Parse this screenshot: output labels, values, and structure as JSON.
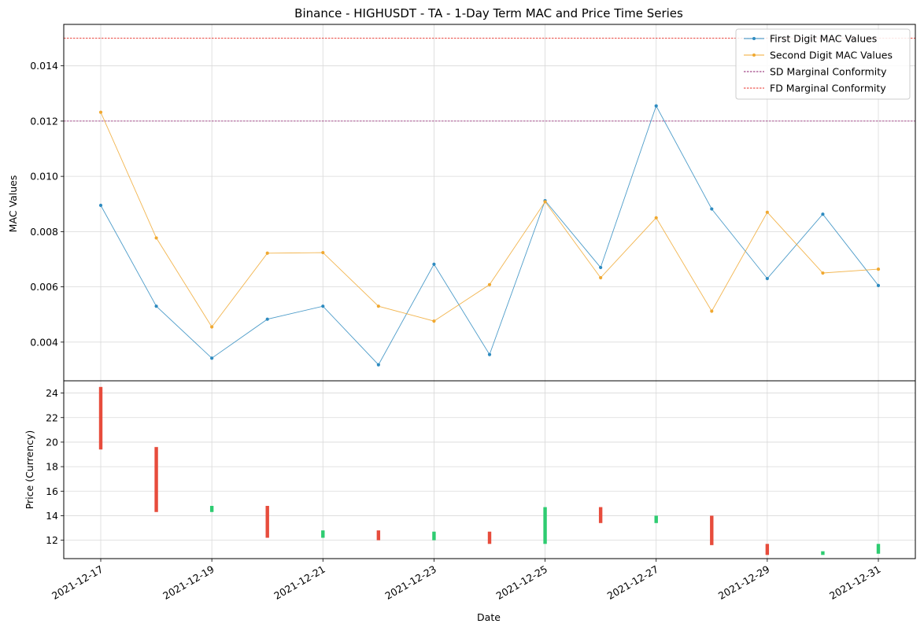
{
  "chart_data": {
    "title": "Binance - HIGHUSDT - TA - 1-Day Term MAC and Price Time Series",
    "xlabel": "Date",
    "dates": [
      "2021-12-17",
      "2021-12-18",
      "2021-12-19",
      "2021-12-20",
      "2021-12-21",
      "2021-12-22",
      "2021-12-23",
      "2021-12-24",
      "2021-12-25",
      "2021-12-26",
      "2021-12-27",
      "2021-12-28",
      "2021-12-29",
      "2021-12-30",
      "2021-12-31"
    ],
    "x_tick_labels": [
      "2021-12-17",
      "2021-12-19",
      "2021-12-21",
      "2021-12-23",
      "2021-12-25",
      "2021-12-27",
      "2021-12-29",
      "2021-12-31"
    ],
    "mac_panel": {
      "type": "line",
      "ylabel": "MAC Values",
      "ylim": [
        0.0026,
        0.0155
      ],
      "y_ticks": [
        0.004,
        0.006,
        0.008,
        0.01,
        0.012,
        0.014
      ],
      "y_tick_labels": [
        "0.004",
        "0.006",
        "0.008",
        "0.010",
        "0.012",
        "0.014"
      ],
      "grid": true,
      "legend_position": "top-right",
      "series": [
        {
          "name": "First Digit MAC Values",
          "color": "#2e8bc0",
          "values": [
            0.00895,
            0.0053,
            0.00342,
            0.00483,
            0.0053,
            0.00318,
            0.00682,
            0.00355,
            0.00912,
            0.0067,
            0.01255,
            0.00882,
            0.0063,
            0.00863,
            0.00605
          ]
        },
        {
          "name": "Second Digit MAC Values",
          "color": "#f0a830",
          "values": [
            0.01232,
            0.00777,
            0.00455,
            0.00722,
            0.00724,
            0.0053,
            0.00476,
            0.00608,
            0.00908,
            0.00633,
            0.0085,
            0.00512,
            0.0087,
            0.0065,
            0.00664
          ]
        }
      ],
      "reference_lines": [
        {
          "name": "SD Marginal Conformity",
          "value": 0.012,
          "color": "#8b1a6b"
        },
        {
          "name": "FD Marginal Conformity",
          "value": 0.015,
          "color": "#e8302a"
        }
      ]
    },
    "price_panel": {
      "type": "candlestick",
      "ylabel": "Price (Currency)",
      "ylim": [
        10.5,
        25.0
      ],
      "y_ticks": [
        12,
        14,
        16,
        18,
        20,
        22,
        24
      ],
      "y_tick_labels": [
        "12",
        "14",
        "16",
        "18",
        "20",
        "22",
        "24"
      ],
      "grid": true,
      "up_color": "#2ecc71",
      "down_color": "#e74c3c",
      "candles": [
        {
          "open": 24.5,
          "close": 19.4
        },
        {
          "open": 19.6,
          "close": 14.3
        },
        {
          "open": 14.3,
          "close": 14.8
        },
        {
          "open": 14.8,
          "close": 12.2
        },
        {
          "open": 12.2,
          "close": 12.8
        },
        {
          "open": 12.8,
          "close": 12.0
        },
        {
          "open": 12.0,
          "close": 12.7
        },
        {
          "open": 12.7,
          "close": 11.7
        },
        {
          "open": 11.7,
          "close": 14.7
        },
        {
          "open": 14.7,
          "close": 13.4
        },
        {
          "open": 13.4,
          "close": 14.0
        },
        {
          "open": 14.0,
          "close": 11.6
        },
        {
          "open": 11.7,
          "close": 10.8
        },
        {
          "open": 10.8,
          "close": 11.1
        },
        {
          "open": 10.9,
          "close": 11.7
        }
      ]
    }
  }
}
